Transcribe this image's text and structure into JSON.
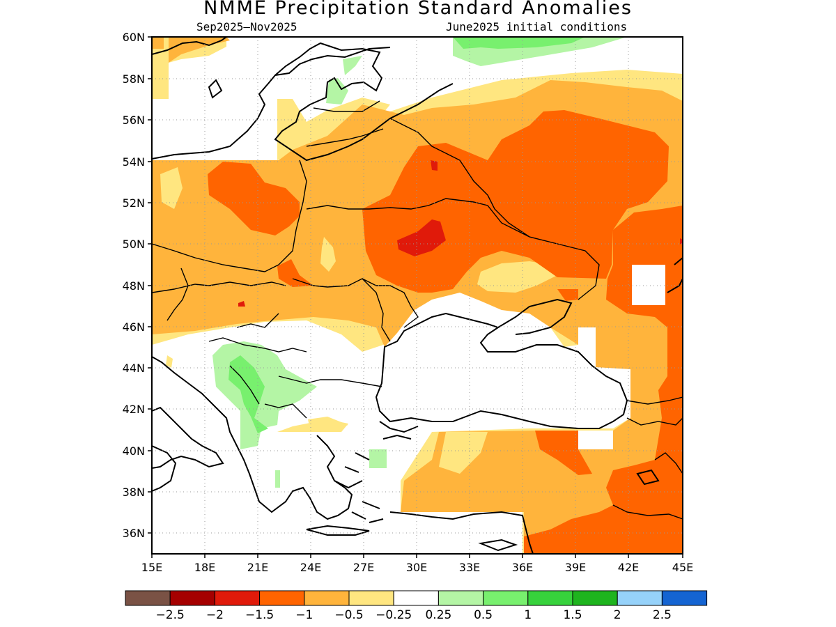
{
  "title": "NMME Precipitation Standard Anomalies",
  "season": "Sep2025–Nov2025",
  "initial_conditions": "June2025 initial conditions",
  "map": {
    "lon_range": [
      15,
      45
    ],
    "lat_range": [
      35,
      60
    ],
    "lat_ticks": [
      "60N",
      "58N",
      "56N",
      "54N",
      "52N",
      "50N",
      "48N",
      "46N",
      "44N",
      "42N",
      "40N",
      "38N",
      "36N"
    ],
    "lon_ticks": [
      "15E",
      "18E",
      "21E",
      "24E",
      "27E",
      "30E",
      "33E",
      "36E",
      "39E",
      "42E",
      "45E"
    ]
  },
  "colorbar": {
    "colors": [
      "#7a5245",
      "#a50000",
      "#e01a0a",
      "#ff6400",
      "#ffb43c",
      "#ffe680",
      "#ffffff",
      "#b4f5a5",
      "#78f06e",
      "#37d23c",
      "#1eb41e",
      "#96d2fa",
      "#1464d2"
    ],
    "labels": [
      "−2.5",
      "−2",
      "−1.5",
      "−1",
      "−0.5",
      "−0.25",
      "0.25",
      "0.5",
      "1",
      "1.5",
      "2",
      "2.5"
    ]
  },
  "palette": {
    "pale_yellow": "#ffe680",
    "light_orange": "#ffb43c",
    "orange": "#ff6400",
    "red": "#e01a0a",
    "light_green": "#b4f5a5",
    "green": "#78f06e"
  }
}
